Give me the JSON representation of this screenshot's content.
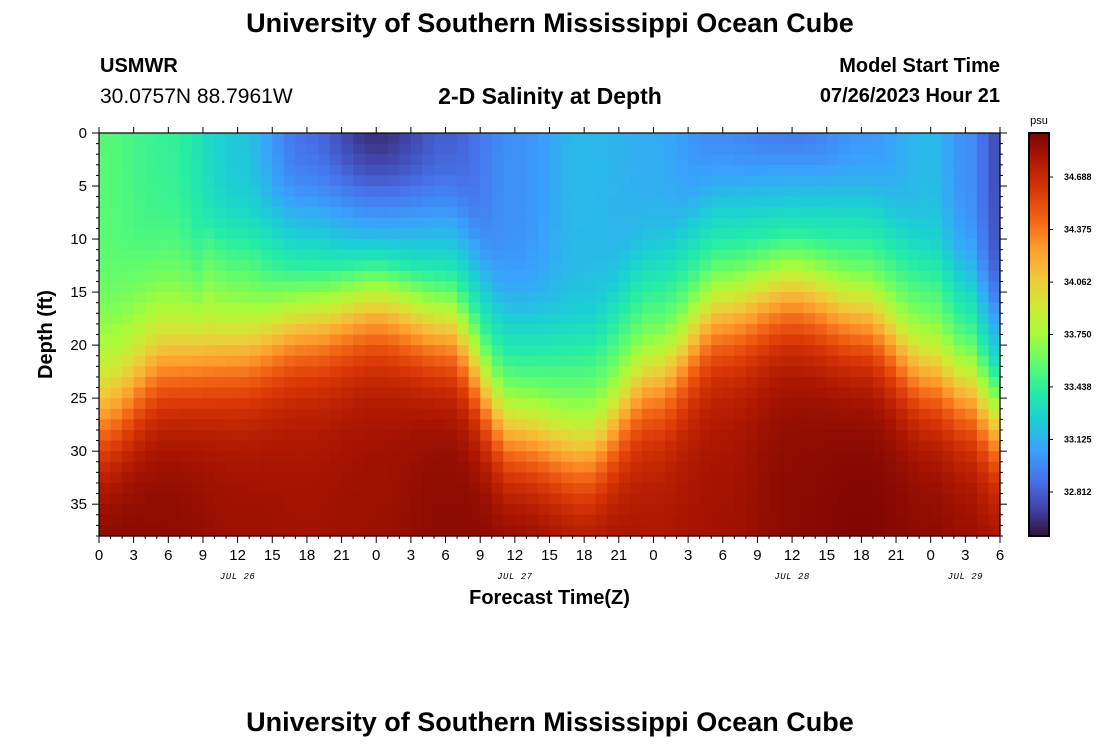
{
  "header": {
    "title": "University of Southern Mississippi Ocean Cube",
    "station_name": "USMWR",
    "station_coords": "30.0757N  88.7961W",
    "plot_title": "2-D Salinity at Depth",
    "model_label": "Model Start Time",
    "model_time": "07/26/2023 Hour 21"
  },
  "footer": {
    "title": "University of Southern Mississippi Ocean Cube"
  },
  "chart_data": {
    "type": "heatmap",
    "xlabel": "Forecast Time(Z)",
    "ylabel": "Depth (ft)",
    "x_tick_labels": [
      "0",
      "3",
      "6",
      "9",
      "12",
      "15",
      "18",
      "21",
      "0",
      "3",
      "6",
      "9",
      "12",
      "15",
      "18",
      "21",
      "0",
      "3",
      "6",
      "9",
      "12",
      "15",
      "18",
      "21",
      "0",
      "3",
      "6"
    ],
    "x_step_hours": 3,
    "x_range_hours": [
      0,
      78
    ],
    "date_labels": [
      {
        "label": "JUL 26",
        "hour": 12
      },
      {
        "label": "JUL 27",
        "hour": 36
      },
      {
        "label": "JUL 28",
        "hour": 60
      },
      {
        "label": "JUL 29",
        "hour": 75
      }
    ],
    "y_ticks": [
      0,
      5,
      10,
      15,
      20,
      25,
      30,
      35
    ],
    "y_range": [
      0,
      38
    ],
    "y_inverted": true,
    "colorbar": {
      "unit": "psu",
      "ticks": [
        32.812,
        33.125,
        33.438,
        33.75,
        34.062,
        34.375,
        34.688
      ],
      "range": [
        32.55,
        34.95
      ],
      "colormap": [
        "#30123b",
        "#4145ab",
        "#4675ed",
        "#39a2fc",
        "#1bcfd4",
        "#24eca6",
        "#61fc6c",
        "#a4fc3b",
        "#d1e834",
        "#f3c63a",
        "#fe9b2d",
        "#f36315",
        "#d93806",
        "#b11901",
        "#7a0402"
      ]
    },
    "grid": false,
    "depth_profile_x_hours": [
      0,
      6,
      12,
      18,
      24,
      30,
      36,
      42,
      48,
      54,
      60,
      66,
      72,
      75,
      78
    ],
    "surface_salinity": [
      33.55,
      33.45,
      33.2,
      32.85,
      32.6,
      32.8,
      33.0,
      33.15,
      33.1,
      32.95,
      32.85,
      33.0,
      33.15,
      33.0,
      32.75
    ],
    "halocline_depth_ft": [
      26.5,
      21.0,
      19.5,
      16.5,
      14.5,
      17.0,
      27.0,
      29.0,
      22.0,
      15.5,
      13.5,
      16.0,
      21.5,
      23.0,
      26.0
    ],
    "bottom_salinity": [
      34.93,
      34.9,
      34.85,
      34.83,
      34.85,
      34.9,
      34.92,
      34.87,
      34.8,
      34.83,
      34.9,
      34.93,
      34.9,
      34.87,
      34.85
    ]
  }
}
